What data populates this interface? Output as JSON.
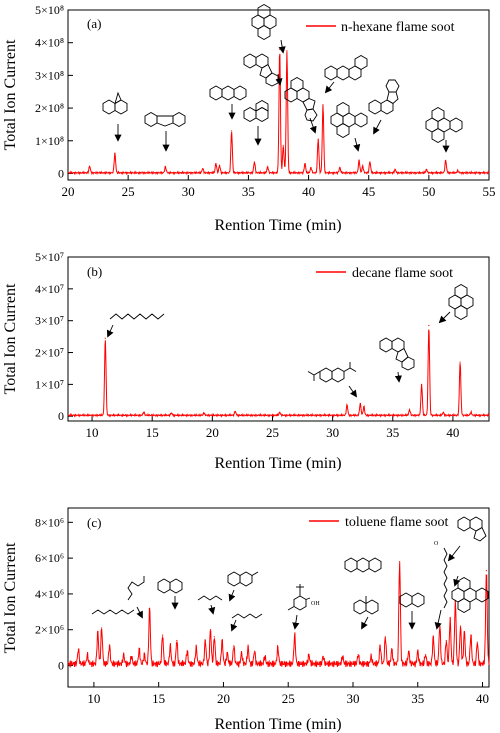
{
  "chart_data": [
    {
      "type": "line",
      "panel_label": "(a)",
      "xlabel": "Rention Time (min)",
      "ylabel": "Total Ion Current",
      "xlim": [
        20,
        55
      ],
      "ylim": [
        -0.2,
        5.0
      ],
      "y_unit_exponent": 8,
      "x_ticks": [
        "20",
        "25",
        "30",
        "35",
        "40",
        "45",
        "50",
        "55"
      ],
      "x_tick_values": [
        20,
        25,
        30,
        35,
        40,
        45,
        50,
        55
      ],
      "y_ticks": [
        "0",
        "1×10⁸",
        "2×10⁸",
        "3×10⁸",
        "4×10⁸",
        "5×10⁸"
      ],
      "y_tick_values": [
        0,
        1,
        2,
        3,
        4,
        5
      ],
      "legend": "n-hexane flame soot",
      "legend_position": "top-right",
      "line_color": "#ff0000",
      "baseline": 0.02,
      "peaks": [
        [
          21.8,
          0.22
        ],
        [
          23.9,
          0.62
        ],
        [
          28.1,
          0.2
        ],
        [
          31.2,
          0.15
        ],
        [
          32.3,
          0.3
        ],
        [
          32.6,
          0.24
        ],
        [
          33.6,
          1.3
        ],
        [
          35.5,
          0.35
        ],
        [
          36.6,
          0.2
        ],
        [
          37.6,
          3.8
        ],
        [
          37.9,
          0.85
        ],
        [
          38.2,
          3.75
        ],
        [
          39.7,
          0.3
        ],
        [
          40.2,
          0.18
        ],
        [
          40.8,
          1.05
        ],
        [
          41.2,
          2.1
        ],
        [
          42.6,
          0.18
        ],
        [
          44.2,
          0.4
        ],
        [
          44.5,
          0.22
        ],
        [
          45.1,
          0.35
        ],
        [
          47.2,
          0.12
        ],
        [
          49.8,
          0.12
        ],
        [
          51.4,
          0.4
        ],
        [
          52.4,
          0.08
        ]
      ],
      "grid": false
    },
    {
      "type": "line",
      "panel_label": "(b)",
      "xlabel": "Rention Time (min)",
      "ylabel": "Total Ion Current",
      "xlim": [
        8,
        43
      ],
      "ylim": [
        -0.15,
        5.0
      ],
      "y_unit_exponent": 7,
      "x_ticks": [
        "10",
        "15",
        "20",
        "25",
        "30",
        "35",
        "40"
      ],
      "x_tick_values": [
        10,
        15,
        20,
        25,
        30,
        35,
        40
      ],
      "y_ticks": [
        "0",
        "1×10⁷",
        "2×10⁷",
        "3×10⁷",
        "4×10⁷",
        "5×10⁷"
      ],
      "y_tick_values": [
        0,
        1,
        2,
        3,
        4,
        5
      ],
      "legend": "decane flame soot",
      "legend_position": "top-right",
      "line_color": "#ff0000",
      "baseline": 0.03,
      "peaks": [
        [
          11.1,
          2.45
        ],
        [
          14.3,
          0.12
        ],
        [
          16.6,
          0.1
        ],
        [
          19.3,
          0.1
        ],
        [
          21.9,
          0.15
        ],
        [
          25.6,
          0.12
        ],
        [
          31.2,
          0.35
        ],
        [
          32.3,
          0.4
        ],
        [
          32.6,
          0.3
        ],
        [
          36.4,
          0.2
        ],
        [
          37.4,
          1.0
        ],
        [
          38.0,
          2.85
        ],
        [
          39.2,
          0.12
        ],
        [
          40.6,
          1.7
        ],
        [
          41.5,
          0.12
        ]
      ],
      "grid": false
    },
    {
      "type": "line",
      "panel_label": "(c)",
      "xlabel": "Rention Time (min)",
      "ylabel": "Total Ion Current",
      "xlim": [
        8,
        40.5
      ],
      "ylim": [
        -1.2,
        8.8
      ],
      "y_unit_exponent": 6,
      "x_ticks": [
        "10",
        "15",
        "20",
        "25",
        "30",
        "35",
        "40"
      ],
      "x_tick_values": [
        10,
        15,
        20,
        25,
        30,
        35,
        40
      ],
      "y_ticks": [
        "0",
        "2×10⁶",
        "4×10⁶",
        "6×10⁶",
        "8×10⁶"
      ],
      "y_tick_values": [
        0,
        2,
        4,
        6,
        8
      ],
      "legend": "toluene flame soot",
      "legend_position": "top-right",
      "line_color": "#ff0000",
      "baseline": 0.1,
      "peaks": [
        [
          8.8,
          0.9
        ],
        [
          9.5,
          0.6
        ],
        [
          10.3,
          1.9
        ],
        [
          10.6,
          2.1
        ],
        [
          11.2,
          1.1
        ],
        [
          12.3,
          0.6
        ],
        [
          12.9,
          0.5
        ],
        [
          13.5,
          0.9
        ],
        [
          13.9,
          0.6
        ],
        [
          14.3,
          3.2
        ],
        [
          15.3,
          1.7
        ],
        [
          15.9,
          1.1
        ],
        [
          16.4,
          1.4
        ],
        [
          17.2,
          0.8
        ],
        [
          17.9,
          1.0
        ],
        [
          18.6,
          1.4
        ],
        [
          19.0,
          2.0
        ],
        [
          19.3,
          1.6
        ],
        [
          19.9,
          1.4
        ],
        [
          20.3,
          0.7
        ],
        [
          20.8,
          1.1
        ],
        [
          21.4,
          0.7
        ],
        [
          21.9,
          1.0
        ],
        [
          22.4,
          0.8
        ],
        [
          23.2,
          0.5
        ],
        [
          24.2,
          1.0
        ],
        [
          25.5,
          1.7
        ],
        [
          26.6,
          0.6
        ],
        [
          27.7,
          0.5
        ],
        [
          29.2,
          0.5
        ],
        [
          30.4,
          0.6
        ],
        [
          31.4,
          0.5
        ],
        [
          32.1,
          1.1
        ],
        [
          32.5,
          1.6
        ],
        [
          33.0,
          0.9
        ],
        [
          33.6,
          5.8
        ],
        [
          34.3,
          0.8
        ],
        [
          35.0,
          0.8
        ],
        [
          35.6,
          0.6
        ],
        [
          36.2,
          1.6
        ],
        [
          36.7,
          2.2
        ],
        [
          37.2,
          1.4
        ],
        [
          37.5,
          2.6
        ],
        [
          37.9,
          3.6
        ],
        [
          38.3,
          2.2
        ],
        [
          38.6,
          1.9
        ],
        [
          39.1,
          1.7
        ],
        [
          39.6,
          1.3
        ],
        [
          40.3,
          5.3
        ]
      ],
      "grid": false
    }
  ]
}
